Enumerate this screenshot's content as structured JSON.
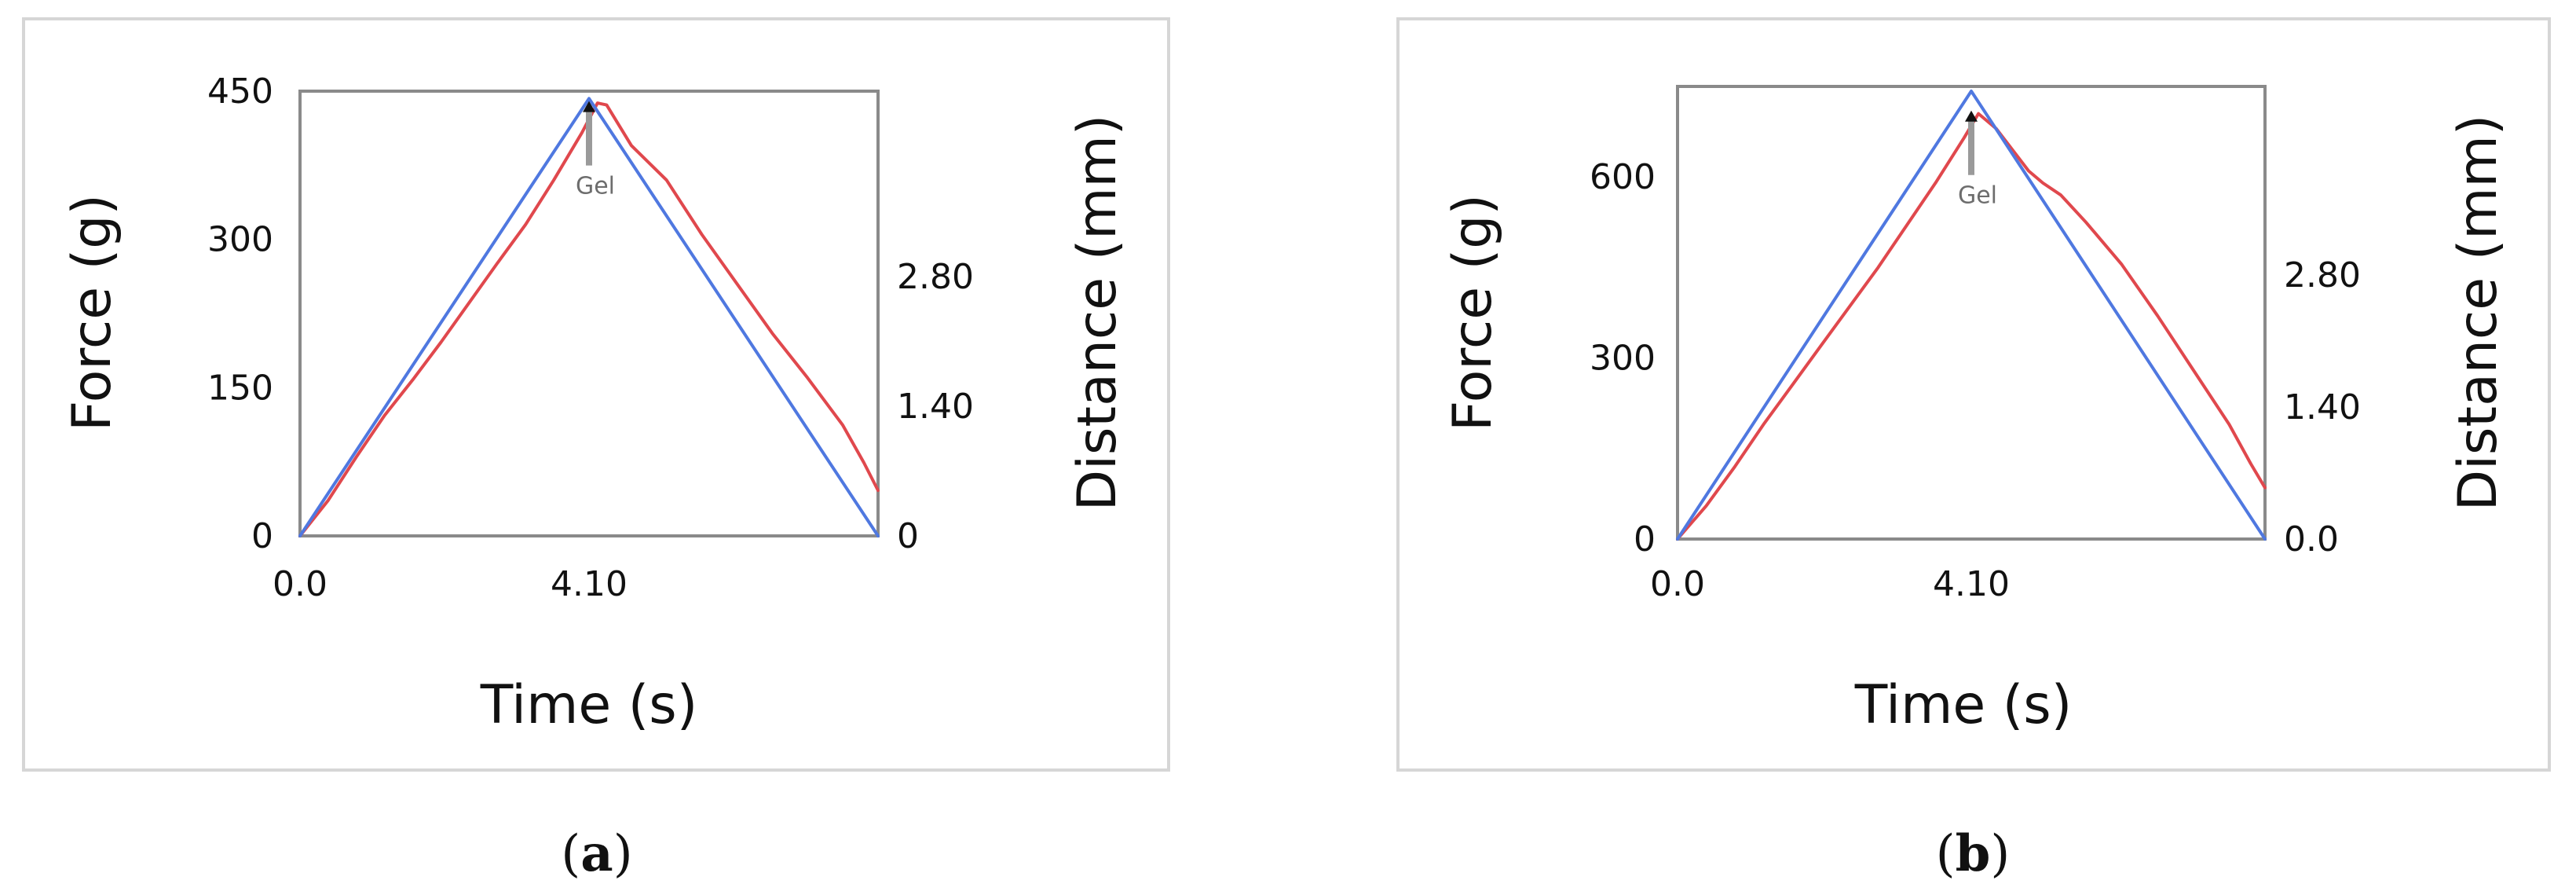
{
  "chart_data": [
    {
      "id": "a",
      "type": "line",
      "title": "",
      "xlabel": "Time (s)",
      "ylabel": "Force (g)",
      "y2label": "Distance (mm)",
      "xlim": [
        0,
        8.2
      ],
      "ylim": [
        0,
        450
      ],
      "y2lim": [
        0,
        4.8
      ],
      "x_ticks": [
        {
          "value": 0,
          "label": "0.0"
        },
        {
          "value": 4.1,
          "label": "4.10"
        }
      ],
      "y_ticks": [
        {
          "value": 0,
          "label": "0"
        },
        {
          "value": 150,
          "label": "150"
        },
        {
          "value": 300,
          "label": "300"
        },
        {
          "value": 450,
          "label": "450"
        }
      ],
      "y2_ticks": [
        {
          "value": 0,
          "label": "0"
        },
        {
          "value": 1.4,
          "label": "1.40"
        },
        {
          "value": 2.8,
          "label": "2.80"
        }
      ],
      "series": [
        {
          "color": "#e0484d",
          "axis": "left",
          "x": [
            0,
            0.4,
            0.8,
            1.2,
            1.6,
            2.0,
            2.4,
            2.8,
            3.2,
            3.6,
            4.0,
            4.22,
            4.35,
            4.7,
            5.2,
            5.7,
            6.2,
            6.7,
            7.2,
            7.7,
            8.0,
            8.2
          ],
          "y": [
            0,
            36,
            80,
            122,
            158,
            196,
            236,
            276,
            315,
            360,
            408,
            438,
            436,
            395,
            360,
            305,
            255,
            205,
            160,
            112,
            74,
            46
          ]
        },
        {
          "color": "#4f78e0",
          "axis": "right",
          "x": [
            0,
            4.1,
            8.2
          ],
          "y": [
            0,
            4.72,
            0
          ]
        }
      ],
      "annotation": {
        "text": "Gel",
        "x": 4.1,
        "y": 440
      }
    },
    {
      "id": "b",
      "type": "line",
      "title": "",
      "xlabel": "Time (s)",
      "ylabel": "Force (g)",
      "y2label": "Distance (mm)",
      "xlim": [
        0,
        8.2
      ],
      "ylim": [
        0,
        750
      ],
      "y2lim": [
        0,
        4.8
      ],
      "x_ticks": [
        {
          "value": 0,
          "label": "0.0"
        },
        {
          "value": 4.1,
          "label": "4.10"
        }
      ],
      "y_ticks": [
        {
          "value": 0,
          "label": "0"
        },
        {
          "value": 300,
          "label": "300"
        },
        {
          "value": 600,
          "label": "600"
        }
      ],
      "y2_ticks": [
        {
          "value": 0,
          "label": "0.0"
        },
        {
          "value": 1.4,
          "label": "1.40"
        },
        {
          "value": 2.8,
          "label": "2.80"
        }
      ],
      "series": [
        {
          "color": "#e0484d",
          "axis": "left",
          "x": [
            0,
            0.4,
            0.8,
            1.2,
            1.6,
            2.0,
            2.4,
            2.8,
            3.2,
            3.6,
            4.0,
            4.2,
            4.45,
            4.9,
            5.1,
            5.35,
            5.7,
            6.2,
            6.7,
            7.2,
            7.7,
            8.0,
            8.2
          ],
          "y": [
            0,
            55,
            120,
            190,
            255,
            320,
            385,
            450,
            520,
            590,
            665,
            705,
            680,
            610,
            590,
            570,
            525,
            455,
            370,
            280,
            190,
            125,
            85
          ]
        },
        {
          "color": "#4f78e0",
          "axis": "right",
          "x": [
            0,
            4.1,
            8.2
          ],
          "y": [
            0,
            4.75,
            0
          ]
        }
      ],
      "annotation": {
        "text": "Gel",
        "x": 4.1,
        "y": 710
      }
    }
  ],
  "captions": [
    {
      "open": "(",
      "letter": "a",
      "close": ")"
    },
    {
      "open": "(",
      "letter": "b",
      "close": ")"
    }
  ]
}
